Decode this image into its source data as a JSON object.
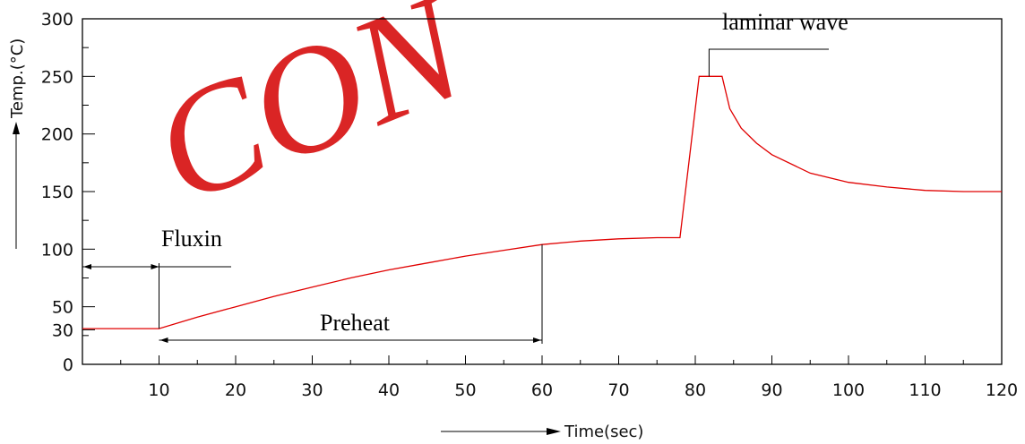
{
  "chart_data": {
    "type": "line",
    "title": "",
    "xlabel": "Time(sec)",
    "ylabel": "Temp.(°C)",
    "xlim": [
      0,
      120
    ],
    "ylim": [
      0,
      300
    ],
    "x_ticks": [
      10,
      20,
      30,
      40,
      50,
      60,
      70,
      80,
      90,
      100,
      110,
      120
    ],
    "y_ticks": [
      0,
      30,
      50,
      100,
      150,
      200,
      250,
      300
    ],
    "grid": false,
    "series": [
      {
        "color": "#e00000",
        "points": [
          [
            0,
            31
          ],
          [
            10,
            31
          ],
          [
            15,
            41
          ],
          [
            20,
            50
          ],
          [
            25,
            59
          ],
          [
            30,
            67
          ],
          [
            35,
            75
          ],
          [
            40,
            82
          ],
          [
            45,
            88
          ],
          [
            50,
            94
          ],
          [
            55,
            99
          ],
          [
            60,
            104
          ],
          [
            65,
            107
          ],
          [
            70,
            109
          ],
          [
            75,
            110
          ],
          [
            78,
            110
          ],
          [
            80.5,
            250
          ],
          [
            83.5,
            250
          ],
          [
            84.5,
            222
          ],
          [
            86,
            205
          ],
          [
            88,
            192
          ],
          [
            90,
            182
          ],
          [
            95,
            166
          ],
          [
            100,
            158
          ],
          [
            105,
            154
          ],
          [
            110,
            151
          ],
          [
            115,
            150
          ],
          [
            120,
            150
          ]
        ]
      }
    ],
    "annotations": {
      "fluxin": "Fluxin",
      "preheat": "Preheat",
      "laminar_wave": "laminar wave"
    },
    "watermark": "CON"
  },
  "colors": {
    "line": "#e00000",
    "axis": "#000000",
    "watermark": "#d40000"
  }
}
